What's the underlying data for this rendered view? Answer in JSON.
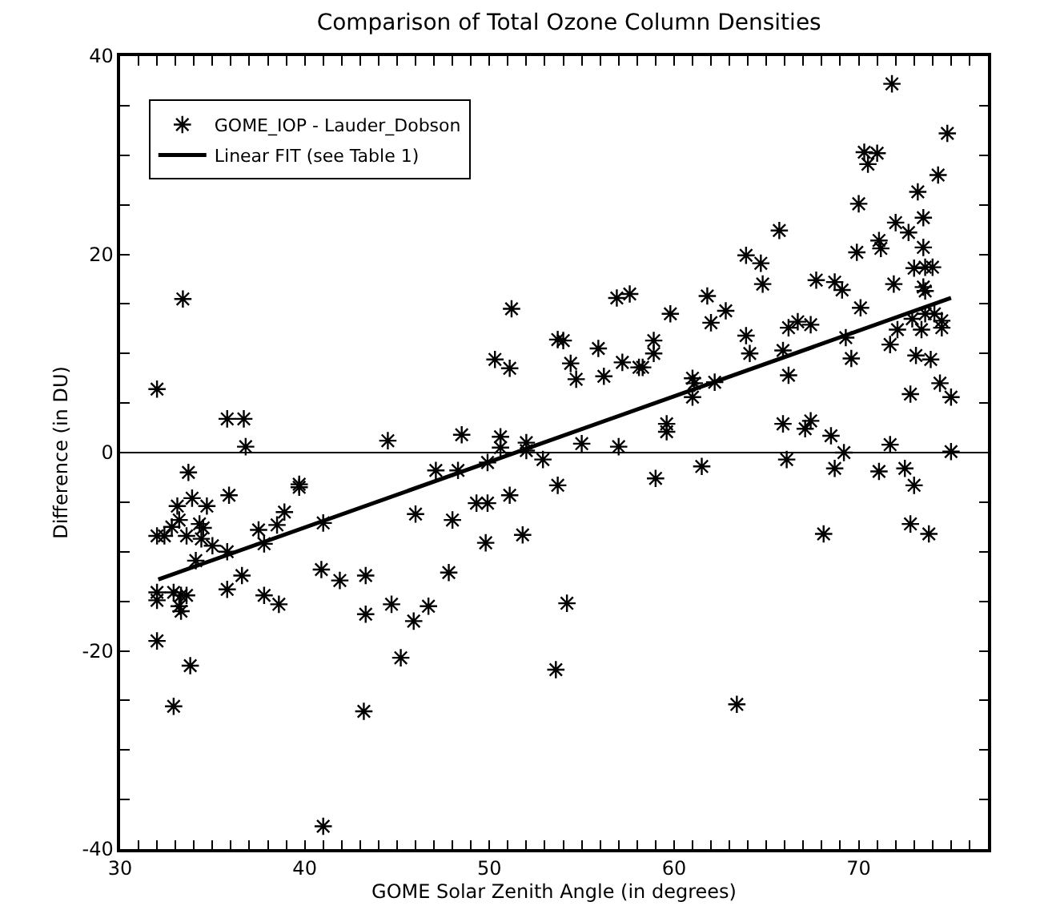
{
  "chart_data": {
    "type": "scatter",
    "title": "Comparison of Total Ozone Column Densities",
    "xlabel": "GOME Solar Zenith Angle (in degrees)",
    "ylabel": "Difference (in DU)",
    "xlim": [
      30,
      77
    ],
    "ylim": [
      -40,
      40
    ],
    "xticks": [
      30,
      {
        "value": 31,
        "label": null
      },
      {
        "value": 32,
        "label": null
      },
      {
        "value": 33,
        "label": null
      },
      {
        "value": 34,
        "label": null
      },
      {
        "value": 35,
        "label": null
      },
      {
        "value": 36,
        "label": null
      },
      {
        "value": 37,
        "label": null
      },
      {
        "value": 38,
        "label": null
      },
      {
        "value": 39,
        "label": null
      },
      40,
      {
        "value": 41,
        "label": null
      },
      {
        "value": 42,
        "label": null
      },
      {
        "value": 43,
        "label": null
      },
      {
        "value": 44,
        "label": null
      },
      {
        "value": 45,
        "label": null
      },
      {
        "value": 46,
        "label": null
      },
      {
        "value": 47,
        "label": null
      },
      {
        "value": 48,
        "label": null
      },
      {
        "value": 49,
        "label": null
      },
      50,
      {
        "value": 51,
        "label": null
      },
      {
        "value": 52,
        "label": null
      },
      {
        "value": 53,
        "label": null
      },
      {
        "value": 54,
        "label": null
      },
      {
        "value": 55,
        "label": null
      },
      {
        "value": 56,
        "label": null
      },
      {
        "value": 57,
        "label": null
      },
      {
        "value": 58,
        "label": null
      },
      {
        "value": 59,
        "label": null
      },
      60,
      {
        "value": 61,
        "label": null
      },
      {
        "value": 62,
        "label": null
      },
      {
        "value": 63,
        "label": null
      },
      {
        "value": 64,
        "label": null
      },
      {
        "value": 65,
        "label": null
      },
      {
        "value": 66,
        "label": null
      },
      {
        "value": 67,
        "label": null
      },
      {
        "value": 68,
        "label": null
      },
      {
        "value": 69,
        "label": null
      },
      70,
      {
        "value": 71,
        "label": null
      },
      {
        "value": 72,
        "label": null
      },
      {
        "value": 73,
        "label": null
      },
      {
        "value": 74,
        "label": null
      },
      {
        "value": 75,
        "label": null
      },
      {
        "value": 76,
        "label": null
      }
    ],
    "yticks": [
      -40,
      {
        "value": -35,
        "label": null
      },
      {
        "value": -30,
        "label": null
      },
      {
        "value": -25,
        "label": null
      },
      -20,
      {
        "value": -15,
        "label": null
      },
      {
        "value": -10,
        "label": null
      },
      {
        "value": -5,
        "label": null
      },
      0,
      {
        "value": 5,
        "label": null
      },
      {
        "value": 10,
        "label": null
      },
      {
        "value": 15,
        "label": null
      },
      20,
      {
        "value": 25,
        "label": null
      },
      {
        "value": 30,
        "label": null
      },
      {
        "value": 35,
        "label": null
      },
      40
    ],
    "grid": false,
    "legend": "top left",
    "marker": "cross",
    "ref_lines": [
      {
        "axis": "y",
        "value": 0,
        "color": "#000000",
        "line_style": "solid"
      }
    ],
    "series": [
      {
        "name": "GOME_IOP - Lauder_Dobson",
        "color": "#000000",
        "x": [
          32.0,
          33.4,
          35.8,
          36.7,
          36.8,
          44.5,
          48.5,
          50.6,
          50.6,
          52.0,
          52.0,
          52.9,
          50.3,
          51.1,
          51.2,
          53.7,
          54.0,
          54.4,
          54.7,
          71.8,
          74.8,
          70.3,
          71.0,
          70.5,
          74.3,
          73.2,
          70.0,
          73.5,
          72.0,
          72.7,
          73.5,
          71.1,
          71.2,
          69.9,
          65.7,
          63.9,
          64.7,
          64.8,
          67.7,
          68.7,
          69.1,
          73.0,
          73.6,
          74.0,
          73.5,
          73.6,
          71.9,
          70.1,
          72.9,
          73.6,
          74.1,
          74.5,
          74.5,
          72.1,
          73.4,
          71.7,
          73.1,
          73.9,
          69.3,
          69.6,
          66.2,
          66.7,
          67.4,
          65.9,
          66.2,
          63.9,
          64.1,
          62.0,
          62.8,
          61.8,
          59.8,
          56.9,
          57.6,
          55.9,
          57.2,
          56.2,
          58.1,
          58.3,
          58.9,
          58.9,
          61.0,
          61.1,
          61.0,
          62.2,
          59.6,
          59.6,
          65.9,
          67.1,
          67.4,
          68.5,
          72.8,
          74.4,
          75.0,
          71.7,
          55.0,
          57.0,
          75.0,
          53.7,
          59.0,
          61.5,
          66.1,
          68.7,
          69.2,
          68.1,
          71.1,
          72.5,
          73.0,
          72.8,
          73.8,
          54.2,
          53.6,
          63.4,
          33.7,
          39.7,
          39.7,
          35.9,
          33.9,
          33.1,
          34.7,
          47.1,
          48.3,
          49.9,
          49.3,
          49.9,
          51.1,
          38.9,
          38.5,
          37.5,
          37.8,
          33.2,
          32.8,
          32.0,
          32.4,
          33.6,
          34.3,
          34.5,
          34.4,
          35.0,
          35.8,
          34.1,
          41.0,
          46.0,
          48.0,
          49.8,
          51.8,
          36.6,
          35.8,
          40.9,
          41.9,
          43.3,
          37.8,
          38.6,
          43.3,
          44.7,
          45.9,
          46.7,
          47.8,
          32.0,
          32.0,
          32.9,
          33.3,
          33.2,
          33.3,
          33.6,
          32.0,
          33.8,
          32.9,
          45.2,
          43.2,
          41.0
        ],
        "values": [
          6.4,
          15.5,
          3.4,
          3.4,
          0.6,
          1.2,
          1.8,
          1.6,
          0.5,
          1.0,
          0.2,
          -0.7,
          9.4,
          8.5,
          14.5,
          11.4,
          11.3,
          9.0,
          7.4,
          37.2,
          32.2,
          30.3,
          30.2,
          29.1,
          28.0,
          26.3,
          25.1,
          23.7,
          23.2,
          22.2,
          20.7,
          21.4,
          20.6,
          20.2,
          22.4,
          19.9,
          19.1,
          17.0,
          17.4,
          17.2,
          16.4,
          18.6,
          18.7,
          18.7,
          16.7,
          16.3,
          17.0,
          14.6,
          13.5,
          14.0,
          14.0,
          13.3,
          12.6,
          12.4,
          12.4,
          10.9,
          9.8,
          9.4,
          11.6,
          9.5,
          12.6,
          13.2,
          12.9,
          10.3,
          7.8,
          11.8,
          10.0,
          13.1,
          14.3,
          15.8,
          14.0,
          15.6,
          16.0,
          10.5,
          9.1,
          7.7,
          8.6,
          8.6,
          11.3,
          10.0,
          7.5,
          7.0,
          5.6,
          7.1,
          2.9,
          2.1,
          2.9,
          2.4,
          3.2,
          1.7,
          5.9,
          7.0,
          5.6,
          0.8,
          0.9,
          0.6,
          0.1,
          -3.3,
          -2.6,
          -1.4,
          -0.7,
          -1.6,
          0.0,
          -8.2,
          -1.9,
          -1.6,
          -3.3,
          -7.2,
          -8.2,
          -15.2,
          -21.9,
          -25.4,
          -2.0,
          -3.2,
          -3.5,
          -4.3,
          -4.6,
          -5.4,
          -5.4,
          -1.8,
          -1.8,
          -1.0,
          -5.1,
          -5.1,
          -4.3,
          -6.0,
          -7.3,
          -7.8,
          -9.2,
          -6.8,
          -7.5,
          -8.4,
          -8.4,
          -8.4,
          -7.2,
          -7.6,
          -8.7,
          -9.4,
          -10.0,
          -10.9,
          -7.1,
          -6.2,
          -6.8,
          -9.1,
          -8.3,
          -12.4,
          -13.8,
          -11.8,
          -12.9,
          -12.4,
          -14.4,
          -15.3,
          -16.3,
          -15.3,
          -17.0,
          -15.5,
          -12.1,
          -14.1,
          -14.9,
          -14.1,
          -14.4,
          -15.5,
          -16.0,
          -14.4,
          -19.0,
          -21.5,
          -25.6,
          -20.7,
          -26.1,
          -37.7
        ]
      },
      {
        "name": "Linear FIT (see Table 1)",
        "color": "#000000",
        "type": "line",
        "marker": "none",
        "line_style": "solid",
        "x": [
          32.07,
          75.0
        ],
        "values": [
          -12.8,
          15.6
        ]
      }
    ]
  }
}
